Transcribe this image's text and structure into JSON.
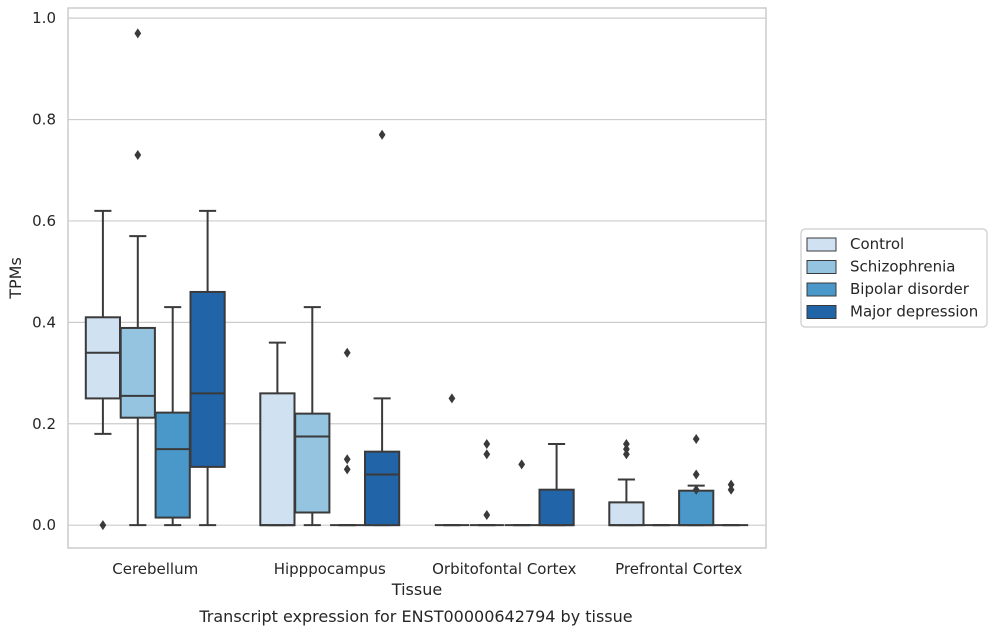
{
  "chart_data": {
    "type": "box",
    "title": "",
    "caption": "Transcript expression for ENST00000642794 by tissue",
    "xlabel": "Tissue",
    "ylabel": "TPMs",
    "ylim": [
      -0.045,
      1.02
    ],
    "yticks": [
      "0.0",
      "0.2",
      "0.4",
      "0.6",
      "0.8",
      "1.0"
    ],
    "grid": true,
    "legend_position": "right",
    "categories": [
      "Cerebellum",
      "Hipppocampus",
      "Orbitofontal Cortex",
      "Prefrontal Cortex"
    ],
    "series": [
      {
        "name": "Control",
        "color": "#d0e1f2",
        "boxes": [
          {
            "whislo": 0.18,
            "q1": 0.25,
            "med": 0.34,
            "q3": 0.41,
            "whishi": 0.62,
            "fliers": [
              0.0
            ]
          },
          {
            "whislo": 0.0,
            "q1": 0.0,
            "med": 0.0,
            "q3": 0.26,
            "whishi": 0.36,
            "fliers": []
          },
          {
            "whislo": 0.0,
            "q1": 0.0,
            "med": 0.0,
            "q3": 0.0,
            "whishi": 0.0,
            "fliers": [
              0.25
            ]
          },
          {
            "whislo": 0.0,
            "q1": 0.0,
            "med": 0.0,
            "q3": 0.045,
            "whishi": 0.09,
            "fliers": [
              0.14,
              0.15,
              0.16
            ]
          }
        ]
      },
      {
        "name": "Schizophrenia",
        "color": "#94c4df",
        "boxes": [
          {
            "whislo": 0.0,
            "q1": 0.212,
            "med": 0.255,
            "q3": 0.389,
            "whishi": 0.57,
            "fliers": [
              0.73,
              0.97
            ]
          },
          {
            "whislo": 0.0,
            "q1": 0.025,
            "med": 0.175,
            "q3": 0.22,
            "whishi": 0.43,
            "fliers": []
          },
          {
            "whislo": 0.0,
            "q1": 0.0,
            "med": 0.0,
            "q3": 0.0,
            "whishi": 0.0,
            "fliers": [
              0.02,
              0.14,
              0.16
            ]
          },
          {
            "whislo": 0.0,
            "q1": 0.0,
            "med": 0.0,
            "q3": 0.0,
            "whishi": 0.0,
            "fliers": []
          }
        ]
      },
      {
        "name": "Bipolar disorder",
        "color": "#4a98c9",
        "boxes": [
          {
            "whislo": 0.0,
            "q1": 0.015,
            "med": 0.15,
            "q3": 0.222,
            "whishi": 0.43,
            "fliers": []
          },
          {
            "whislo": 0.0,
            "q1": 0.0,
            "med": 0.0,
            "q3": 0.0,
            "whishi": 0.0,
            "fliers": [
              0.11,
              0.13,
              0.34
            ]
          },
          {
            "whislo": 0.0,
            "q1": 0.0,
            "med": 0.0,
            "q3": 0.0,
            "whishi": 0.0,
            "fliers": [
              0.12
            ]
          },
          {
            "whislo": 0.0,
            "q1": 0.0,
            "med": 0.0,
            "q3": 0.068,
            "whishi": 0.078,
            "fliers": [
              0.07,
              0.1,
              0.17
            ]
          }
        ]
      },
      {
        "name": "Major depression",
        "color": "#2264a8",
        "boxes": [
          {
            "whislo": 0.0,
            "q1": 0.115,
            "med": 0.26,
            "q3": 0.46,
            "whishi": 0.62,
            "fliers": []
          },
          {
            "whislo": 0.0,
            "q1": 0.0,
            "med": 0.1,
            "q3": 0.145,
            "whishi": 0.25,
            "fliers": [
              0.77
            ]
          },
          {
            "whislo": 0.0,
            "q1": 0.0,
            "med": 0.0,
            "q3": 0.07,
            "whishi": 0.16,
            "fliers": []
          },
          {
            "whislo": 0.0,
            "q1": 0.0,
            "med": 0.0,
            "q3": 0.0,
            "whishi": 0.0,
            "fliers": [
              0.07,
              0.08
            ]
          }
        ]
      }
    ]
  }
}
